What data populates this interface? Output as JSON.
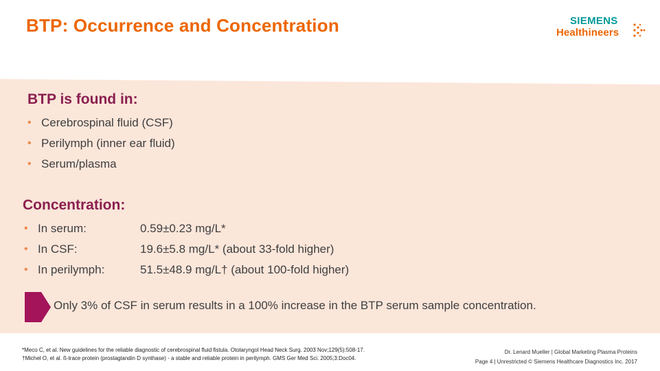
{
  "title": "BTP: Occurrence and Concentration",
  "logo": {
    "line1": "SIEMENS",
    "line2": "Healthineers"
  },
  "colors": {
    "title": "#ec6602",
    "heading": "#8a1f4f",
    "bullet": "#ec8a4a",
    "panel": "#fbe6da",
    "logo_teal": "#009999",
    "arrow": "#a3145a"
  },
  "found": {
    "heading": "BTP is found in:",
    "items": [
      "Cerebrospinal fluid (CSF)",
      "Perilymph (inner ear fluid)",
      "Serum/plasma"
    ]
  },
  "concentration": {
    "heading": "Concentration:",
    "rows": [
      {
        "label": "In serum:",
        "value": "0.59±0.23 mg/L*"
      },
      {
        "label": "In CSF:",
        "value": "19.6±5.8 mg/L* (about 33-fold higher)"
      },
      {
        "label": "In perilymph:",
        "value": "51.5±48.9 mg/L† (about 100-fold higher)"
      }
    ]
  },
  "callout": "Only 3% of CSF in serum results in a 100% increase in the BTP serum sample concentration.",
  "footnotes": [
    "*Meco C, et al. New guidelines for the reliable diagnostic of cerebrospinal fluid fistula. Otolaryngol Head Neck Surg. 2003 Nov;129(5):508-17.",
    "†Michel O, et al. ß-trace protein (prostaglandin D synthase) - a stable and reliable protein in perilymph. GMS Ger Med Sci. 2005;3:Doc04."
  ],
  "footer": {
    "line1": "Dr. Lenard Mueller | Global Marketing Plasma Proteins",
    "line2": "Page 4 | Unrestricted © Siemens Healthcare Diagnostics Inc. 2017"
  }
}
